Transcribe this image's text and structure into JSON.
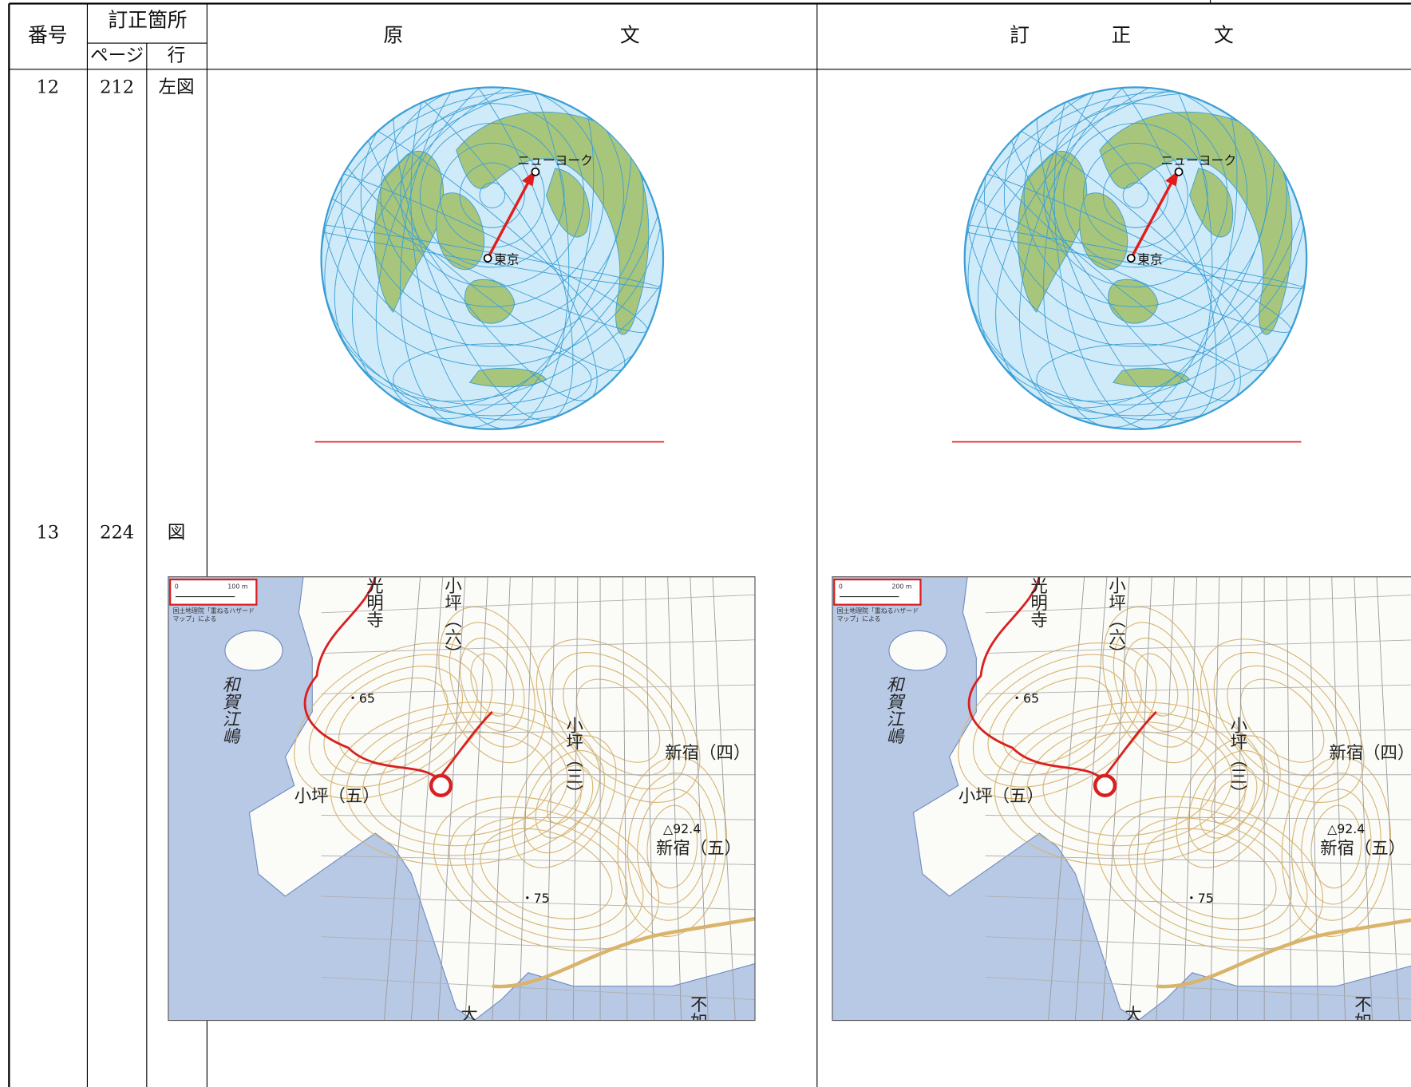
{
  "header": {
    "number": "番号",
    "location": "訂正箇所",
    "page": "ページ",
    "line": "行",
    "original": [
      "原",
      "文"
    ],
    "corrected": [
      "訂",
      "正",
      "文"
    ]
  },
  "rows": [
    {
      "number": "12",
      "page": "212",
      "line": "左図",
      "original": {
        "labels": [
          "ニューヨーク",
          "東京"
        ]
      },
      "corrected": {
        "labels": [
          "ニューヨーク",
          "東京"
        ]
      }
    },
    {
      "number": "13",
      "page": "224",
      "line": "図",
      "original": {
        "scale": [
          "0",
          "100 m"
        ],
        "credit": [
          "国土地理院「重ねるハザード",
          "マップ」による"
        ],
        "labels": [
          "和賀江嶋",
          "小坪（五）",
          "新宿（四）",
          "新宿（五）",
          "小坪（三）",
          "小坪（六）",
          "光明寺",
          "・65",
          "△92.4",
          "・75",
          "不如",
          "大"
        ]
      },
      "corrected": {
        "scale": [
          "0",
          "200 m"
        ],
        "credit": [
          "国土地理院「重ねるハザード",
          "マップ」による"
        ],
        "labels": [
          "和賀江嶋",
          "小坪（五）",
          "新宿（四）",
          "新宿（五）",
          "小坪（三）",
          "小坪（六）",
          "光明寺",
          "・65",
          "△92.4",
          "・75",
          "不如",
          "大"
        ]
      }
    }
  ]
}
